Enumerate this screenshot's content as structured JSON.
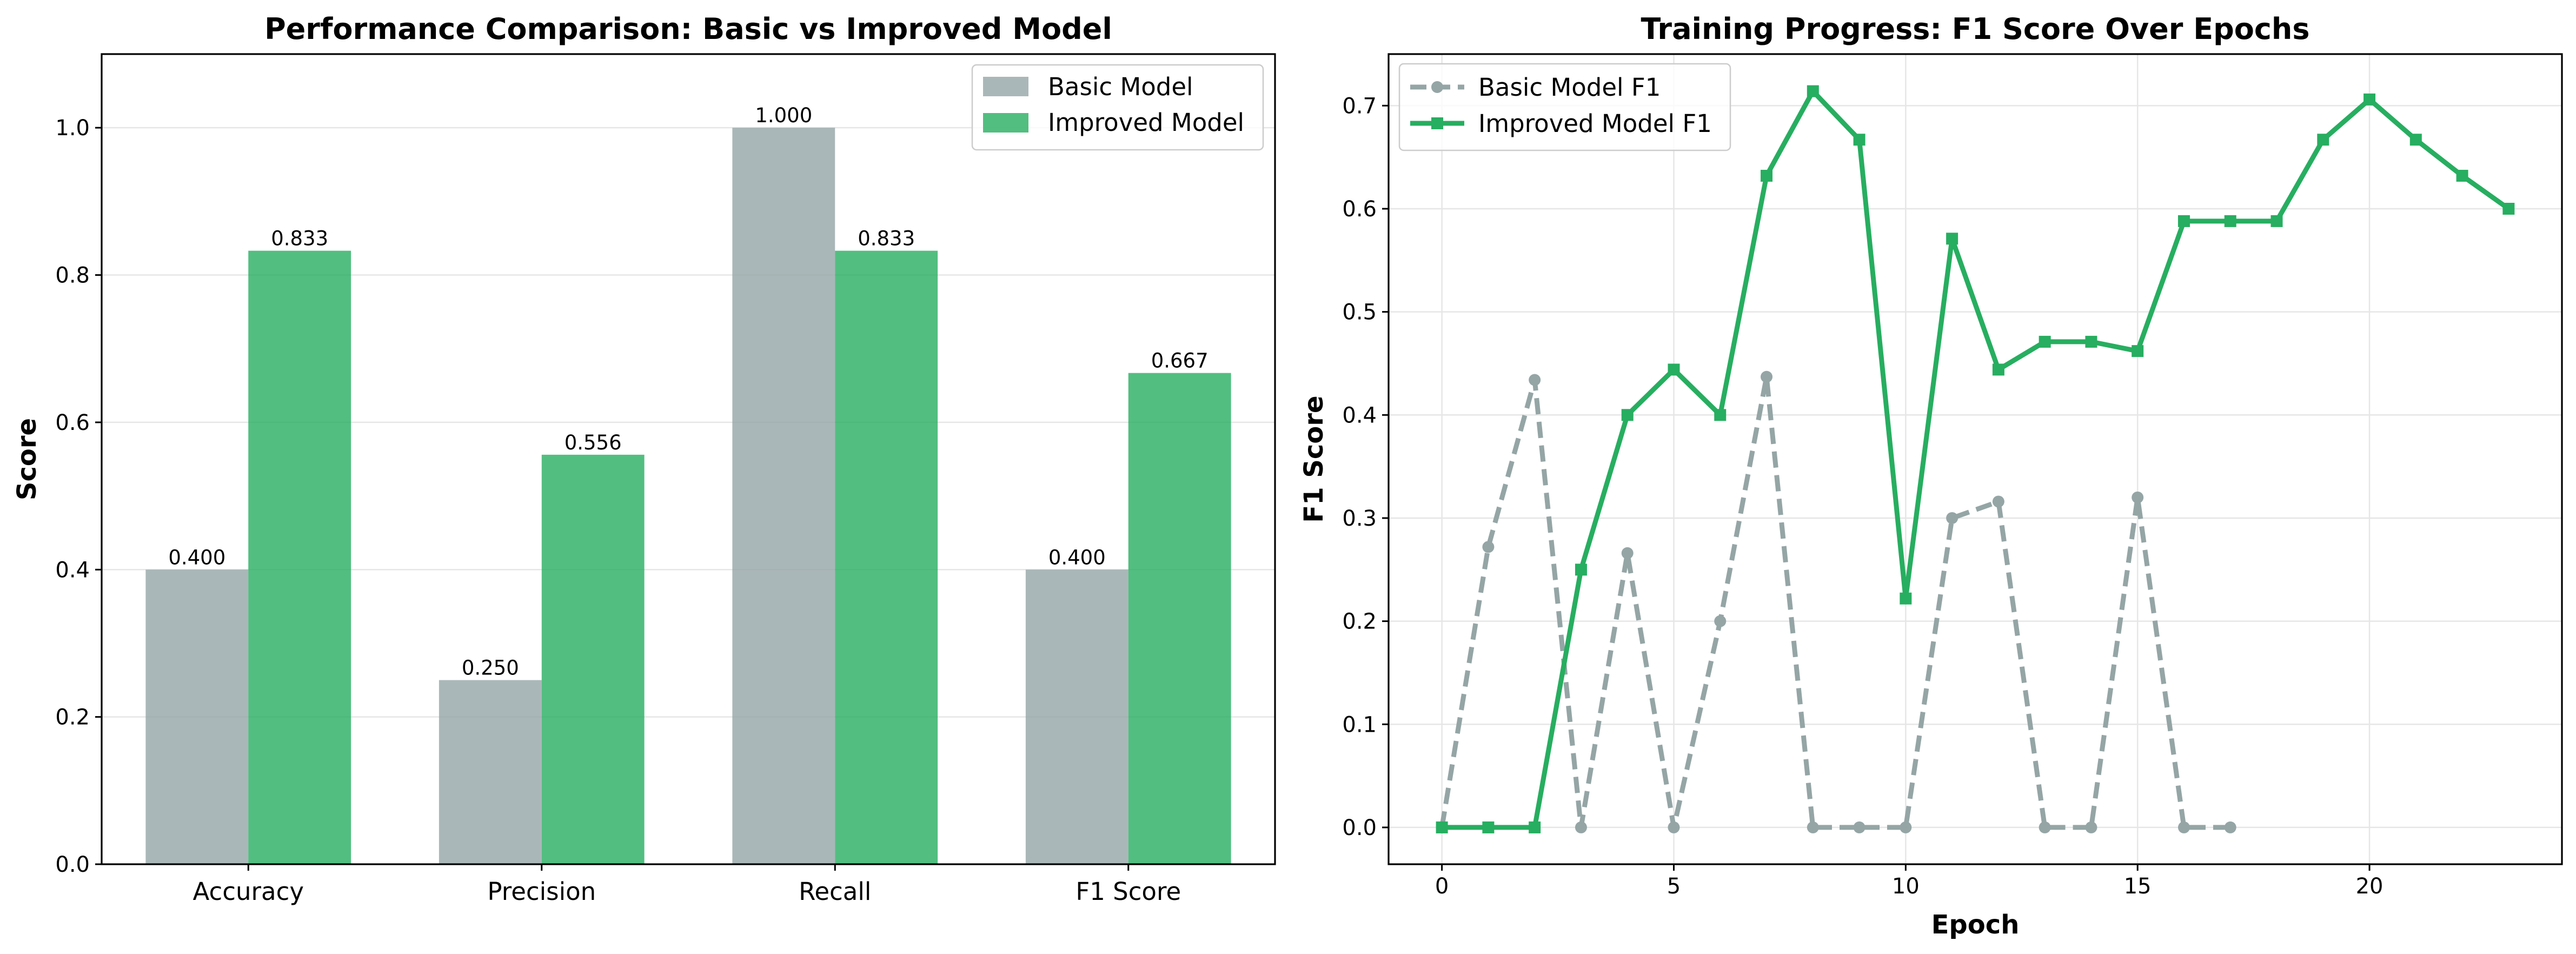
{
  "colors": {
    "basic": "#95a5a6",
    "improved": "#27ae60"
  },
  "chart_data": [
    {
      "type": "bar",
      "title": "Performance Comparison: Basic vs Improved Model",
      "xlabel": "",
      "ylabel": "Score",
      "categories": [
        "Accuracy",
        "Precision",
        "Recall",
        "F1 Score"
      ],
      "ylim": [
        0,
        1.1
      ],
      "yticks": [
        0.0,
        0.2,
        0.4,
        0.6,
        0.8,
        1.0
      ],
      "ytick_labels": [
        "0.0",
        "0.2",
        "0.4",
        "0.6",
        "0.8",
        "1.0"
      ],
      "grid": "y",
      "legend_position": "top-right",
      "series": [
        {
          "name": "Basic Model",
          "values": [
            0.4,
            0.25,
            1.0,
            0.4
          ],
          "value_labels": [
            "0.400",
            "0.250",
            "1.000",
            "0.400"
          ]
        },
        {
          "name": "Improved Model",
          "values": [
            0.833,
            0.556,
            0.833,
            0.667
          ],
          "value_labels": [
            "0.833",
            "0.556",
            "0.833",
            "0.667"
          ]
        }
      ]
    },
    {
      "type": "line",
      "title": "Training Progress: F1 Score Over Epochs",
      "xlabel": "Epoch",
      "ylabel": "F1 Score",
      "xlim": [
        -1.15,
        24.15
      ],
      "ylim": [
        -0.0357,
        0.75
      ],
      "xticks": [
        0,
        5,
        10,
        15,
        20
      ],
      "xtick_labels": [
        "0",
        "5",
        "10",
        "15",
        "20"
      ],
      "yticks": [
        0.0,
        0.1,
        0.2,
        0.3,
        0.4,
        0.5,
        0.6,
        0.7
      ],
      "ytick_labels": [
        "0.0",
        "0.1",
        "0.2",
        "0.3",
        "0.4",
        "0.5",
        "0.6",
        "0.7"
      ],
      "grid": "both",
      "legend_position": "top-left",
      "series": [
        {
          "name": "Basic Model F1",
          "style": "dashed",
          "marker": "circle",
          "x": [
            0,
            1,
            2,
            3,
            4,
            5,
            6,
            7,
            8,
            9,
            10,
            11,
            12,
            13,
            14,
            15,
            16,
            17
          ],
          "y": [
            0.0,
            0.272,
            0.434,
            0.0,
            0.266,
            0.0,
            0.2,
            0.437,
            0.0,
            0.0,
            0.0,
            0.3,
            0.316,
            0.0,
            0.0,
            0.32,
            0.0,
            0.0
          ]
        },
        {
          "name": "Improved Model F1",
          "style": "solid",
          "marker": "square",
          "x": [
            0,
            1,
            2,
            3,
            4,
            5,
            6,
            7,
            8,
            9,
            10,
            11,
            12,
            13,
            14,
            15,
            16,
            17,
            18,
            19,
            20,
            21,
            22,
            23
          ],
          "y": [
            0.0,
            0.0,
            0.0,
            0.25,
            0.4,
            0.444,
            0.4,
            0.632,
            0.714,
            0.667,
            0.222,
            0.571,
            0.444,
            0.471,
            0.471,
            0.462,
            0.588,
            0.588,
            0.588,
            0.667,
            0.706,
            0.667,
            0.632,
            0.6
          ]
        }
      ]
    }
  ]
}
